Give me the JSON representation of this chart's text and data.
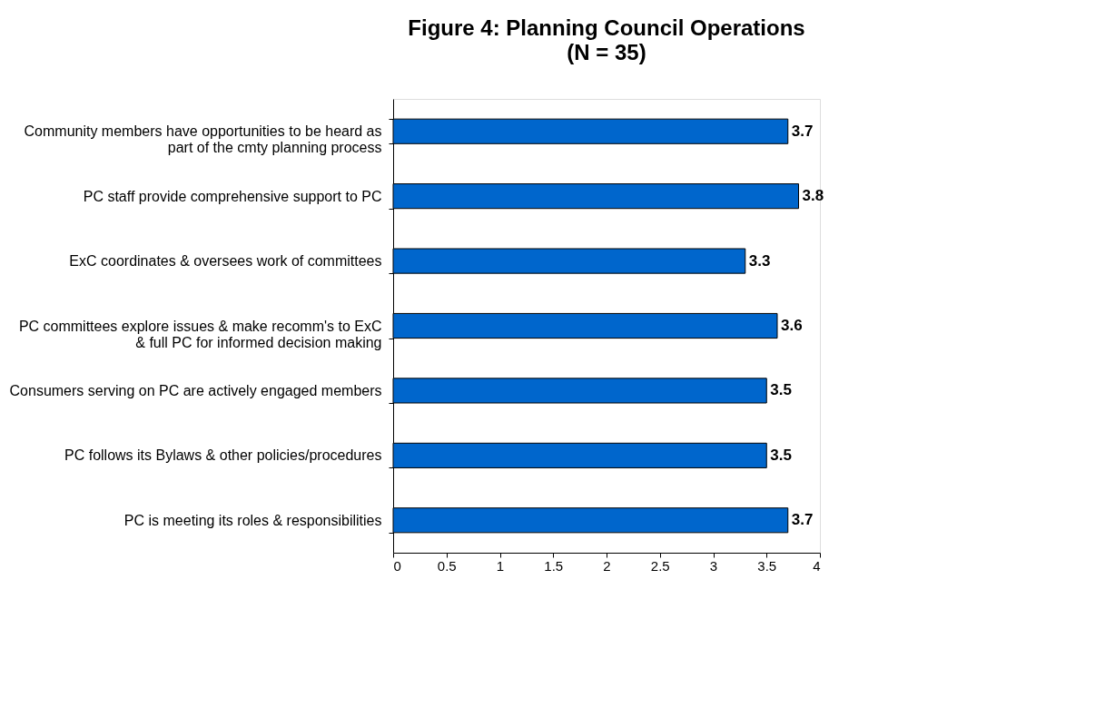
{
  "chart_data": {
    "type": "bar",
    "orientation": "horizontal",
    "title": "Figure 4: Planning Council Operations",
    "subtitle": "(N = 35)",
    "categories": [
      "Community members have opportunities to be heard as part of the cmty planning process",
      "PC staff provide comprehensive support to PC",
      "ExC coordinates & oversees work of committees",
      "PC committees explore issues & make recomm's to ExC & full PC for informed decision making",
      "Consumers serving on PC are actively engaged members",
      "PC follows its Bylaws & other policies/procedures",
      "PC is meeting its roles & responsibilities"
    ],
    "values": [
      3.7,
      3.8,
      3.3,
      3.6,
      3.5,
      3.5,
      3.7
    ],
    "color": "#0066cc",
    "xlim": [
      0,
      4
    ],
    "xticks": [
      0,
      0.5,
      1,
      1.5,
      2,
      2.5,
      3,
      3.5,
      4
    ],
    "data_labels": true,
    "grid": false
  }
}
